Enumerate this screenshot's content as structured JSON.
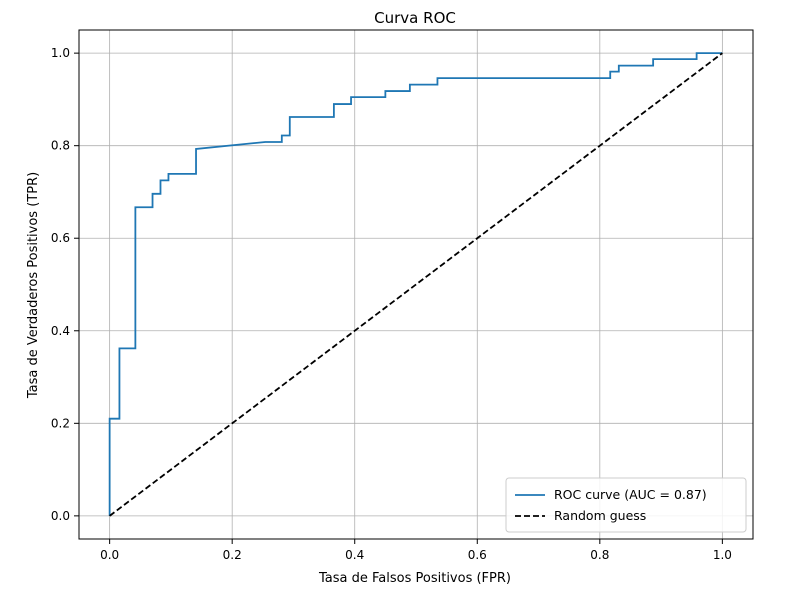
{
  "chart_data": {
    "type": "line",
    "title": "Curva ROC",
    "xlabel": "Tasa de Falsos Positivos (FPR)",
    "ylabel": "Tasa de Verdaderos Positivos (TPR)",
    "xlim": [
      -0.05,
      1.05
    ],
    "ylim": [
      -0.05,
      1.05
    ],
    "xticks": [
      0.0,
      0.2,
      0.4,
      0.6,
      0.8,
      1.0
    ],
    "xtick_labels": [
      "0.0",
      "0.2",
      "0.4",
      "0.6",
      "0.8",
      "1.0"
    ],
    "yticks": [
      0.0,
      0.2,
      0.4,
      0.6,
      0.8,
      1.0
    ],
    "ytick_labels": [
      "0.0",
      "0.2",
      "0.4",
      "0.6",
      "0.8",
      "1.0"
    ],
    "grid": true,
    "legend_position": "lower-right",
    "series": [
      {
        "name": "ROC curve (AUC = 0.87)",
        "color": "#1f77b4",
        "style": "solid",
        "x": [
          0.0,
          0.0,
          0.003,
          0.003,
          0.016,
          0.016,
          0.042,
          0.042,
          0.07,
          0.07,
          0.083,
          0.083,
          0.096,
          0.096,
          0.141,
          0.141,
          0.254,
          0.281,
          0.281,
          0.294,
          0.294,
          0.366,
          0.366,
          0.394,
          0.394,
          0.45,
          0.45,
          0.49,
          0.49,
          0.535,
          0.535,
          0.817,
          0.817,
          0.831,
          0.831,
          0.887,
          0.887,
          0.958,
          0.958,
          1.0
        ],
        "y": [
          0.0,
          0.21,
          0.21,
          0.21,
          0.21,
          0.362,
          0.362,
          0.667,
          0.667,
          0.696,
          0.696,
          0.725,
          0.725,
          0.739,
          0.739,
          0.793,
          0.808,
          0.808,
          0.822,
          0.822,
          0.862,
          0.862,
          0.89,
          0.89,
          0.905,
          0.905,
          0.918,
          0.918,
          0.932,
          0.932,
          0.946,
          0.946,
          0.96,
          0.96,
          0.973,
          0.973,
          0.987,
          0.987,
          1.0,
          1.0
        ]
      },
      {
        "name": "Random guess",
        "color": "#000000",
        "style": "dashed",
        "x": [
          0.0,
          1.0
        ],
        "y": [
          0.0,
          1.0
        ]
      }
    ]
  }
}
